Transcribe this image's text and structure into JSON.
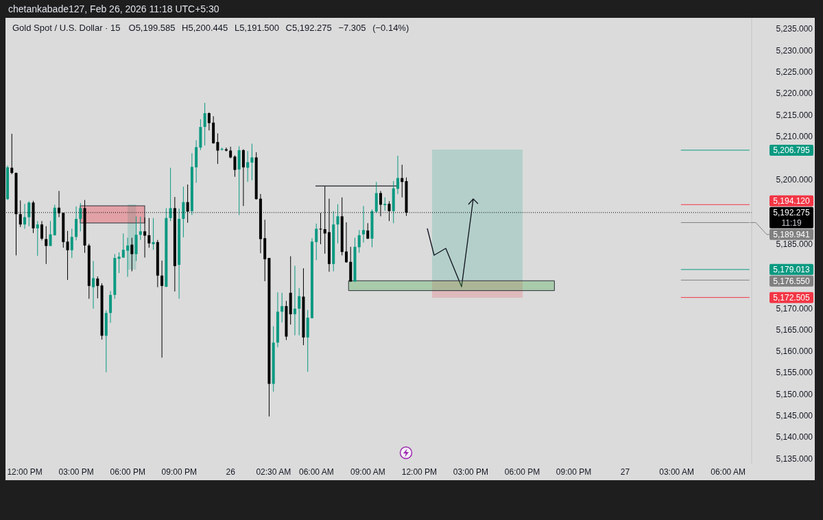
{
  "chart_data": {
    "type": "candlestick",
    "title": "Gold Spot / U.S. Dollar · 15",
    "subtitle": "O5,199.585 H5,200.445 L5,191.500 C5,192.275 −7.305 (−0.14%)",
    "annotations": [
      "chetankabade127, Feb 26, 2026 11:18 UTC+5:30",
      "11:19"
    ],
    "categories": [
      null,
      null,
      null,
      null,
      "12:00 PM",
      null,
      null,
      null,
      null,
      null,
      null,
      null,
      null,
      null,
      null,
      null,
      "03:00 PM",
      null,
      null,
      null,
      null,
      null,
      null,
      null,
      null,
      null,
      null,
      null,
      "06:00 PM",
      null,
      null,
      null,
      null,
      null,
      null,
      null,
      null,
      null,
      null,
      null,
      "09:00 PM",
      null,
      null,
      null,
      null,
      null,
      null,
      null,
      null,
      null,
      null,
      null,
      "26",
      null,
      null,
      null,
      null,
      null,
      null,
      null,
      null,
      null,
      "02:30 AM",
      null,
      null,
      null,
      null,
      null,
      null,
      null,
      null,
      null,
      "06:00 AM",
      null,
      null,
      null,
      null,
      null,
      null,
      null,
      null,
      null,
      null,
      null,
      "09:00 AM",
      null,
      null,
      null,
      null,
      null,
      null,
      null,
      null,
      null,
      null,
      null,
      "12:00 PM",
      null,
      null,
      null,
      null,
      null,
      null,
      null,
      null,
      null,
      null,
      null,
      "03:00 PM",
      null,
      null,
      null,
      null,
      null,
      null,
      null,
      null,
      null,
      null,
      null,
      "06:00 PM",
      null,
      null,
      null,
      null,
      null,
      null,
      null,
      null,
      null,
      null,
      null,
      "09:00 PM",
      null,
      null,
      null,
      null,
      null,
      null,
      null,
      null,
      null,
      null,
      null,
      "27",
      null,
      null,
      null,
      null,
      null,
      null,
      null,
      null,
      null,
      null,
      null,
      "03:00 AM",
      null,
      null,
      null,
      null,
      null,
      null,
      null,
      null,
      null,
      null,
      null,
      "06:00 AM",
      null,
      null,
      null,
      null,
      null
    ],
    "ohlc": [
      [
        5195.4,
        5203.2,
        5195.2,
        5202.8
      ],
      [
        5202.7,
        5210.6,
        5201.2,
        5201.5
      ],
      [
        5201.5,
        5201.6,
        5182.3,
        5191.9
      ],
      [
        5191.9,
        5195.1,
        5188.9,
        5189.5
      ],
      [
        5189.5,
        5194.3,
        5188.5,
        5191.2
      ],
      [
        5191.2,
        5194.9,
        5189.1,
        5194.6
      ],
      [
        5194.6,
        5195.0,
        5187.5,
        5188.6
      ],
      [
        5188.6,
        5190.3,
        5182.2,
        5189.5
      ],
      [
        5189.5,
        5190.3,
        5185.8,
        5186.2
      ],
      [
        5186.1,
        5189.1,
        5180.3,
        5184.5
      ],
      [
        5184.5,
        5190.3,
        5184.5,
        5187.2
      ],
      [
        5187.0,
        5194.1,
        5186.9,
        5193.4
      ],
      [
        5193.4,
        5197.3,
        5191.2,
        5192.1
      ],
      [
        5192.2,
        5192.2,
        5184.1,
        5185.4
      ],
      [
        5185.5,
        5188.0,
        5176.6,
        5183.5
      ],
      [
        5183.5,
        5188.5,
        5181.7,
        5186.6
      ],
      [
        5186.6,
        5193.7,
        5185.8,
        5190.8
      ],
      [
        5190.8,
        5194.5,
        5187.9,
        5193.3
      ],
      [
        5193.3,
        5195.2,
        5182.9,
        5184.6
      ],
      [
        5184.6,
        5185.0,
        5172.2,
        5175.2
      ],
      [
        5174.9,
        5181.0,
        5169.9,
        5177.0
      ],
      [
        5176.9,
        5177.4,
        5172.3,
        5175.2
      ],
      [
        5175.3,
        5175.8,
        5162.7,
        5163.6
      ],
      [
        5163.6,
        5169.5,
        5155.1,
        5168.9
      ],
      [
        5168.9,
        5174.0,
        5166.6,
        5173.1
      ],
      [
        5173.1,
        5182.6,
        5172.2,
        5181.7
      ],
      [
        5181.5,
        5183.0,
        5178.2,
        5182.0
      ],
      [
        5181.8,
        5187.4,
        5181.7,
        5183.6
      ],
      [
        5183.4,
        5186.4,
        5177.3,
        5184.6
      ],
      [
        5184.8,
        5186.4,
        5178.6,
        5182.6
      ],
      [
        5182.6,
        5191.4,
        5181.0,
        5187.1
      ],
      [
        5187.1,
        5191.3,
        5185.9,
        5187.9
      ],
      [
        5187.9,
        5191.1,
        5181.8,
        5186.9
      ],
      [
        5187.0,
        5191.0,
        5184.1,
        5185.1
      ],
      [
        5184.9,
        5191.0,
        5183.6,
        5185.4
      ],
      [
        5185.4,
        5185.9,
        5174.9,
        5177.6
      ],
      [
        5177.6,
        5181.1,
        5158.5,
        5175.2
      ],
      [
        5175.0,
        5193.3,
        5174.9,
        5191.0
      ],
      [
        5191.0,
        5202.7,
        5190.3,
        5193.3
      ],
      [
        5193.3,
        5195.9,
        5173.9,
        5179.8
      ],
      [
        5180.1,
        5193.2,
        5172.2,
        5190.8
      ],
      [
        5190.8,
        5198.3,
        5186.5,
        5194.7
      ],
      [
        5194.7,
        5198.8,
        5189.9,
        5192.5
      ],
      [
        5192.6,
        5206.1,
        5191.7,
        5202.9
      ],
      [
        5202.8,
        5209.1,
        5199.2,
        5207.5
      ],
      [
        5207.4,
        5214.0,
        5206.8,
        5212.2
      ],
      [
        5212.2,
        5217.8,
        5207.9,
        5215.4
      ],
      [
        5215.4,
        5215.6,
        5211.4,
        5213.1
      ],
      [
        5213.2,
        5214.7,
        5208.3,
        5208.4
      ],
      [
        5208.7,
        5210.7,
        5203.6,
        5206.7
      ],
      [
        5206.9,
        5207.4,
        5206.7,
        5207.1
      ],
      [
        5207.0,
        5207.4,
        5206.5,
        5206.7
      ],
      [
        5206.7,
        5207.6,
        5204.9,
        5205.1
      ],
      [
        5205.3,
        5205.6,
        5200.6,
        5202.2
      ],
      [
        5202.3,
        5207.7,
        5191.7,
        5206.8
      ],
      [
        5206.8,
        5207.0,
        5193.8,
        5202.8
      ],
      [
        5202.7,
        5206.6,
        5199.4,
        5204.0
      ],
      [
        5203.9,
        5208.3,
        5199.8,
        5205.1
      ],
      [
        5205.1,
        5206.3,
        5195.3,
        5195.4
      ],
      [
        5195.5,
        5196.6,
        5182.8,
        5186.1
      ],
      [
        5186.3,
        5190.6,
        5176.3,
        5181.4
      ],
      [
        5181.7,
        5181.7,
        5144.8,
        5152.4
      ],
      [
        5152.4,
        5165.8,
        5150.6,
        5162.0
      ],
      [
        5162.0,
        5173.7,
        5160.9,
        5169.2
      ],
      [
        5169.2,
        5173.6,
        5166.7,
        5170.5
      ],
      [
        5170.5,
        5171.7,
        5162.6,
        5163.4
      ],
      [
        5173.6,
        5182.1,
        5166.2,
        5168.6
      ],
      [
        5168.6,
        5179.9,
        5163.7,
        5169.9
      ],
      [
        5169.9,
        5174.7,
        5163.7,
        5172.8
      ],
      [
        5172.7,
        5179.3,
        5161.4,
        5163.2
      ],
      [
        5163.2,
        5169.6,
        5155.2,
        5167.8
      ],
      [
        5167.7,
        5186.3,
        5167.6,
        5185.5
      ],
      [
        5185.4,
        5189.7,
        5181.2,
        5188.5
      ],
      [
        5188.5,
        5192.2,
        5184.9,
        5188.4
      ],
      [
        5188.4,
        5198.4,
        5182.7,
        5187.4
      ],
      [
        5187.7,
        5195.5,
        5178.5,
        5180.3
      ],
      [
        5180.3,
        5192.6,
        5178.6,
        5189.5
      ],
      [
        5189.5,
        5194.2,
        5185.1,
        5191.4
      ],
      [
        5191.4,
        5195.8,
        5182.3,
        5183.1
      ],
      [
        5183.2,
        5190.0,
        5180.6,
        5180.7
      ],
      [
        5180.8,
        5184.3,
        5176.2,
        5176.2
      ],
      [
        5176.2,
        5186.4,
        5176.2,
        5184.3
      ],
      [
        5184.2,
        5188.2,
        5182.9,
        5187.0
      ],
      [
        5187.2,
        5193.8,
        5185.3,
        5188.2
      ],
      [
        5188.1,
        5189.8,
        5186.1,
        5186.2
      ],
      [
        5186.2,
        5193.0,
        5184.2,
        5192.6
      ],
      [
        5192.5,
        5199.4,
        5192.2,
        5196.8
      ],
      [
        5196.8,
        5197.3,
        5191.4,
        5194.1
      ],
      [
        5194.0,
        5195.8,
        5192.7,
        5194.3
      ],
      [
        5194.3,
        5194.9,
        5190.3,
        5192.6
      ],
      [
        5192.6,
        5199.6,
        5189.8,
        5197.9
      ],
      [
        5197.8,
        5205.5,
        5196.6,
        5200.3
      ],
      [
        5200.3,
        5203.4,
        5195.8,
        5199.4
      ],
      [
        5199.585,
        5200.445,
        5191.5,
        5192.275
      ],
      null,
      null,
      null,
      null,
      null,
      null,
      null,
      null,
      null,
      null,
      null,
      null,
      null,
      null,
      null,
      null,
      null,
      null,
      null,
      null,
      null,
      null,
      null,
      null,
      null,
      null,
      null,
      null,
      null,
      null,
      null,
      null,
      null,
      null,
      null,
      null,
      null,
      null,
      null,
      null,
      null,
      null,
      null,
      null,
      null,
      null,
      null,
      null,
      null,
      null,
      null,
      null,
      null,
      null,
      null,
      null,
      null,
      null,
      null,
      null,
      null,
      null,
      null,
      null,
      null,
      null,
      null,
      null,
      null,
      null,
      null,
      null,
      null,
      null,
      null,
      null,
      null,
      null,
      null,
      null
    ],
    "colors": [
      "#089981",
      "#000000",
      "#000000",
      "#000000",
      "#089981",
      "#089981",
      "#000000",
      "#089981",
      "#000000",
      "#000000",
      "#089981",
      "#089981",
      "#000000",
      "#000000",
      "#000000",
      "#089981",
      "#089981",
      "#089981",
      "#000000",
      "#000000",
      "#089981",
      "#000000",
      "#000000",
      "#089981",
      "#089981",
      "#089981",
      "#089981",
      "#089981",
      "#089981",
      "#000000",
      "#089981",
      "#089981",
      "#000000",
      "#000000",
      "#089981",
      "#000000",
      "#000000",
      "#089981",
      "#089981",
      "#000000",
      "#089981",
      "#089981",
      "#000000",
      "#089981",
      "#089981",
      "#089981",
      "#089981",
      "#000000",
      "#000000",
      "#000000",
      "#089981",
      "#000000",
      "#000000",
      "#000000",
      "#089981",
      "#000000",
      "#089981",
      "#089981",
      "#000000",
      "#000000",
      "#000000",
      "#000000",
      "#089981",
      "#089981",
      "#089981",
      "#000000",
      "#000000",
      "#089981",
      "#089981",
      "#000000",
      "#089981",
      "#089981",
      "#089981",
      "#000000",
      "#000000",
      "#000000",
      "#089981",
      "#089981",
      "#000000",
      "#000000",
      "#000000",
      "#089981",
      "#089981",
      "#089981",
      "#000000",
      "#089981",
      "#089981",
      "#000000",
      "#089981",
      "#000000",
      "#089981",
      "#089981",
      "#000000",
      "#000000",
      null,
      null,
      null,
      null,
      null,
      null,
      null,
      null,
      null,
      null,
      null,
      null,
      null,
      null,
      null,
      null,
      null,
      null,
      null,
      null,
      null,
      null,
      null,
      null,
      null,
      null,
      null,
      null,
      null,
      null,
      null,
      null,
      null,
      null,
      null,
      null,
      null,
      null,
      null,
      null,
      null,
      null,
      null,
      null,
      null,
      null,
      null,
      null,
      null,
      null,
      null,
      null,
      null,
      null,
      null,
      null,
      null,
      null,
      null,
      null,
      null,
      null,
      null,
      null,
      null,
      null,
      null,
      null,
      null,
      null,
      null,
      null,
      null,
      null,
      null,
      null,
      null,
      null,
      null,
      null
    ],
    "ylim": [
      5133.8,
      5237.6
    ],
    "yticks": [
      {
        "value": 5235,
        "label": "5,235.000"
      },
      {
        "value": 5230,
        "label": "5,230.000"
      },
      {
        "value": 5225,
        "label": "5,225.000"
      },
      {
        "value": 5220,
        "label": "5,220.000"
      },
      {
        "value": 5215,
        "label": "5,215.000"
      },
      {
        "value": 5210,
        "label": "5,210.000"
      },
      {
        "value": 5200,
        "label": "5,200.000"
      },
      {
        "value": 5185,
        "label": "5,185.000"
      },
      {
        "value": 5170,
        "label": "5,170.000"
      },
      {
        "value": 5165,
        "label": "5,165.000"
      },
      {
        "value": 5160,
        "label": "5,160.000"
      },
      {
        "value": 5155,
        "label": "5,155.000"
      },
      {
        "value": 5150,
        "label": "5,150.000"
      },
      {
        "value": 5145,
        "label": "5,145.000"
      },
      {
        "value": 5140,
        "label": "5,140.000"
      },
      {
        "value": 5135,
        "label": "5,135.000"
      }
    ],
    "ref_lines": [
      {
        "axis": "y",
        "value": 5206.795,
        "label": "5,206.795",
        "color": "#089981"
      },
      {
        "axis": "y",
        "value": 5194.12,
        "label": "5,194.120",
        "color": "#f23645"
      },
      {
        "axis": "y",
        "value": 5192.275,
        "label": "5,192.275",
        "color": "#000000",
        "line_style": "dotted"
      },
      {
        "axis": "y",
        "value": 5189.941,
        "label": "5,189.941",
        "color": "#808080"
      },
      {
        "axis": "y",
        "value": 5179.013,
        "label": "5,179.013",
        "color": "#089981"
      },
      {
        "axis": "y",
        "value": 5176.55,
        "label": "5,176.550",
        "color": "#808080"
      },
      {
        "axis": "y",
        "value": 5172.505,
        "label": "5,172.505",
        "color": "#f23645"
      }
    ],
    "bands": [
      {
        "axis": "y",
        "from": 5174.1,
        "to": 5176.4,
        "color": "#4caf50"
      }
    ]
  }
}
